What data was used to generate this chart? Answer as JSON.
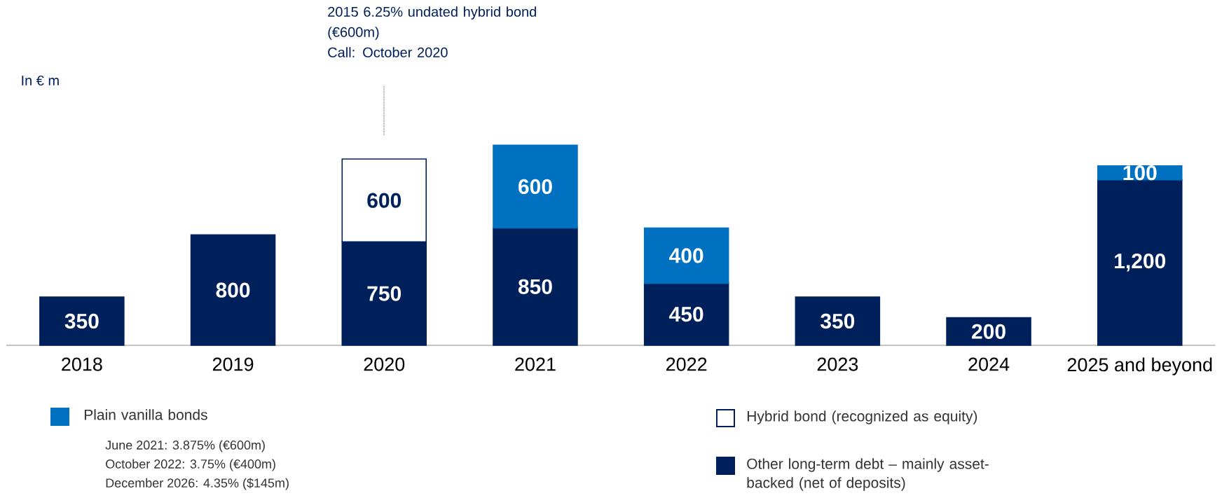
{
  "chart_data": {
    "type": "bar",
    "stacked": true,
    "ylabel": "In € m",
    "categories": [
      "2018",
      "2019",
      "2020",
      "2021",
      "2022",
      "2023",
      "2024",
      "2025 and beyond"
    ],
    "series": [
      {
        "name": "Other long-term debt – mainly asset-backed (net of deposits)",
        "color": "#00205b",
        "values": [
          350,
          800,
          750,
          850,
          450,
          350,
          200,
          1200
        ],
        "value_labels": [
          "350",
          "800",
          "750",
          "850",
          "450",
          "350",
          "200",
          "1,200"
        ]
      },
      {
        "name": "Plain vanilla bonds",
        "color": "#0070c0",
        "values": [
          null,
          null,
          null,
          600,
          400,
          null,
          null,
          100
        ],
        "value_labels": [
          null,
          null,
          null,
          "600",
          "400",
          null,
          null,
          "100"
        ]
      },
      {
        "name": "Hybrid bond (recognized as equity)",
        "color": "#ffffff",
        "values": [
          null,
          null,
          600,
          null,
          null,
          null,
          null,
          null
        ],
        "value_labels": [
          null,
          null,
          "600",
          null,
          null,
          null,
          null,
          null
        ]
      }
    ],
    "annotations": [
      "2015 6.25% undated hybrid bond (€600m)",
      "Call: October 2020",
      "June 2021: 3.875% (€600m)",
      "October 2022: 3.75% (€400m)",
      "December 2026: 4.35% ($145m)"
    ],
    "legend": "bottom"
  }
}
